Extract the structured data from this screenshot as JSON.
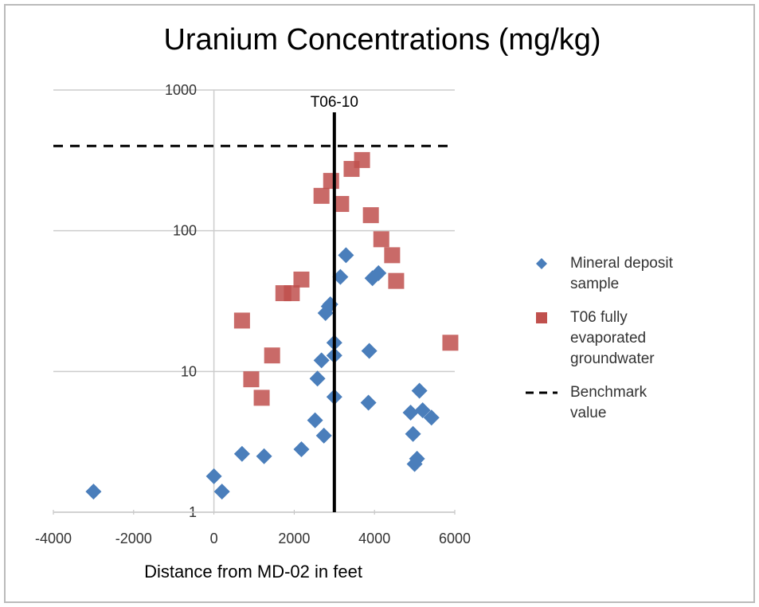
{
  "chart_data": {
    "type": "scatter",
    "title": "Uranium Concentrations (mg/kg)",
    "x_label": "Distance from MD-02 in feet",
    "xlim": [
      -4000,
      6000
    ],
    "xticks": [
      -4000,
      -2000,
      0,
      2000,
      4000,
      6000
    ],
    "ylim": [
      1,
      1000
    ],
    "yticks": [
      1,
      10,
      100,
      1000
    ],
    "y_scale": "log",
    "grid": true,
    "series": [
      {
        "name": "Mineral deposit sample",
        "color": "#4a7ebb",
        "marker": "diamond",
        "x": [
          -3000,
          0,
          200,
          700,
          1250,
          2180,
          2520,
          2740,
          2580,
          2680,
          2780,
          2860,
          2900,
          3000,
          3000,
          3000,
          3150,
          3290,
          3870,
          3850,
          3950,
          4100,
          5120,
          4900,
          5200,
          5420,
          4960,
          5060,
          5000
        ],
        "y": [
          1.4,
          1.8,
          1.4,
          2.6,
          2.5,
          2.8,
          4.5,
          3.5,
          8.9,
          12,
          26,
          29,
          30,
          16,
          13,
          6.6,
          47,
          67,
          14,
          6,
          46,
          50,
          7.3,
          5.1,
          5.3,
          4.7,
          3.6,
          2.4,
          2.2
        ]
      },
      {
        "name": "T06 fully evaporated groundwater",
        "color": "#c0504d",
        "marker": "square",
        "x": [
          700,
          930,
          1190,
          1450,
          1730,
          1940,
          2180,
          2680,
          2920,
          3170,
          3430,
          3690,
          3910,
          4170,
          4440,
          4540,
          5890
        ],
        "y": [
          23,
          8.8,
          6.5,
          13,
          36,
          36,
          45,
          177,
          226,
          155,
          275,
          318,
          129,
          87,
          67,
          44,
          16
        ]
      }
    ],
    "benchmark": {
      "name": "Benchmark value",
      "value": 400,
      "color": "#000000"
    },
    "vline": {
      "label": "T06-10",
      "value": 3000,
      "color": "#000000"
    }
  }
}
